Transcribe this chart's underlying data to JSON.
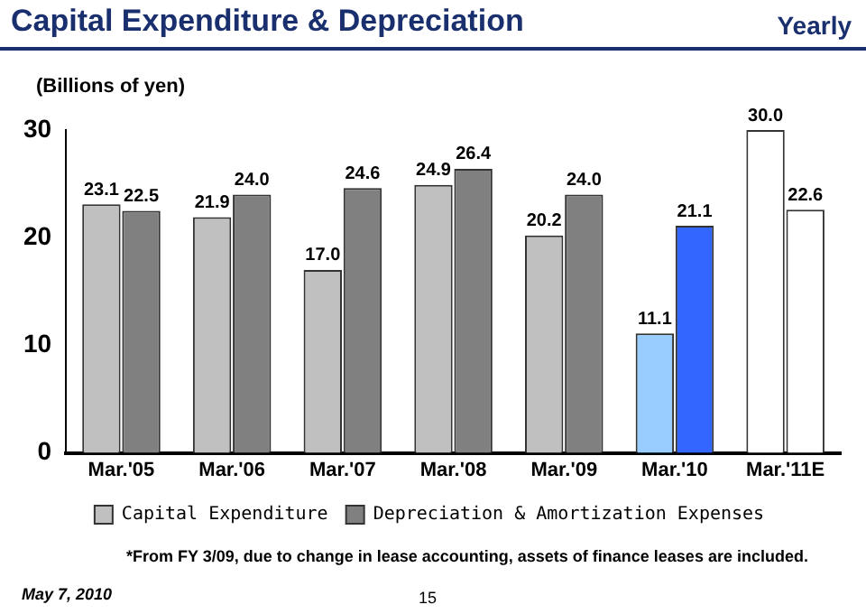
{
  "chart_data": {
    "type": "bar",
    "title": "Capital Expenditure & Depreciation",
    "subtitle": "Yearly",
    "ylabel": "(Billions of yen)",
    "categories": [
      "Mar.'05",
      "Mar.'06",
      "Mar.'07",
      "Mar.'08",
      "Mar.'09",
      "Mar.'10",
      "Mar.'11E"
    ],
    "series": [
      {
        "name": "Capital Expenditure",
        "color": "#c0c0c0",
        "colors": [
          "#c0c0c0",
          "#c0c0c0",
          "#c0c0c0",
          "#c0c0c0",
          "#c0c0c0",
          "#99ccff",
          "#ffffff"
        ],
        "values": [
          23.1,
          21.9,
          17.0,
          24.9,
          20.2,
          11.1,
          30.0
        ],
        "value_labels": [
          "23.1",
          "21.9",
          "17.0",
          "24.9",
          "20.2",
          "11.1",
          "30.0"
        ]
      },
      {
        "name": "Depreciation & Amortization Expenses",
        "color": "#808080",
        "colors": [
          "#808080",
          "#808080",
          "#808080",
          "#808080",
          "#808080",
          "#3366ff",
          "#ffffff"
        ],
        "values": [
          22.5,
          24.0,
          24.6,
          26.4,
          24.0,
          21.1,
          22.6
        ],
        "value_labels": [
          "22.5",
          "24.0",
          "24.6",
          "26.4",
          "24.0",
          "21.1",
          "22.6"
        ]
      }
    ],
    "ylim": [
      0,
      30
    ],
    "yticks": [
      0,
      10,
      20,
      30
    ],
    "grid": false,
    "legend": "bottom",
    "annotations": [
      "*From FY 3/09, due to change in lease accounting, assets of finance leases are included.",
      "May 7, 2010",
      "15"
    ]
  }
}
